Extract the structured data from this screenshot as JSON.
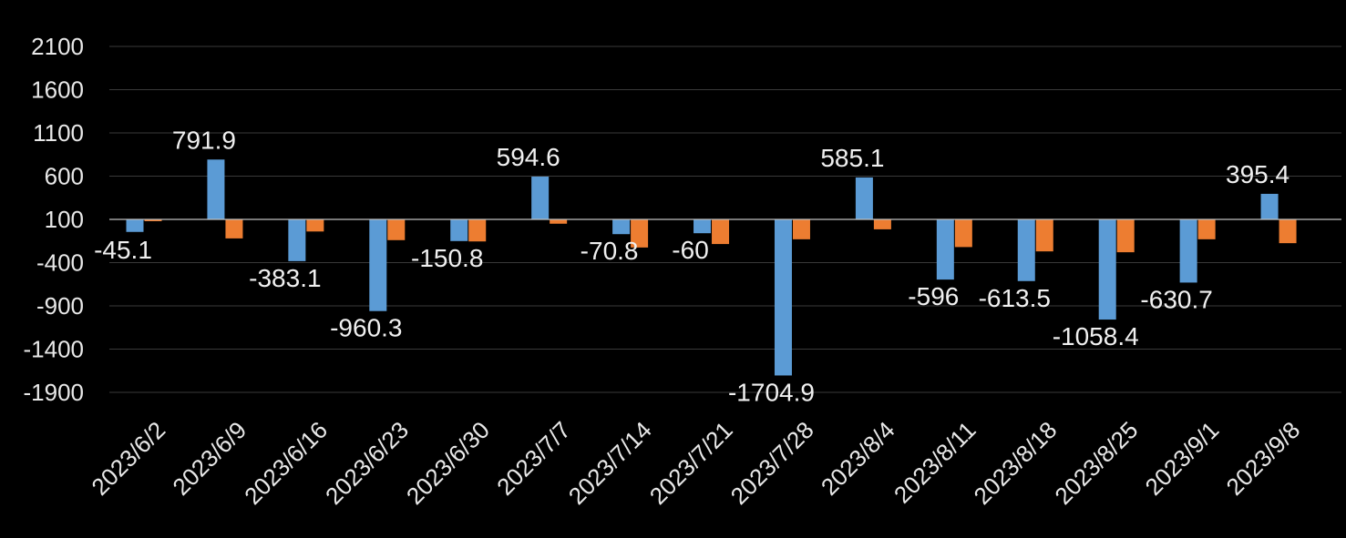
{
  "chart_data": {
    "type": "bar",
    "categories": [
      "2023/6/2",
      "2023/6/9",
      "2023/6/16",
      "2023/6/23",
      "2023/6/30",
      "2023/7/7",
      "2023/7/14",
      "2023/7/21",
      "2023/7/28",
      "2023/8/4",
      "2023/8/11",
      "2023/8/18",
      "2023/8/25",
      "2023/9/1",
      "2023/9/8"
    ],
    "series": [
      {
        "color": "#5b9bd5",
        "values": [
          -45.1,
          791.9,
          -383.1,
          -960.3,
          -150.8,
          594.6,
          -70.8,
          -60,
          -1704.9,
          585.1,
          -596,
          -613.5,
          -1058.4,
          -630.7,
          395.4
        ],
        "labels": [
          "-45.1",
          "791.9",
          "-383.1",
          "-960.3",
          "-150.8",
          "594.6",
          "-70.8",
          "-60",
          "-1704.9",
          "585.1",
          "-596",
          "-613.5",
          "-1058.4",
          "-630.7",
          "395.4"
        ]
      },
      {
        "color": "#ed7d31",
        "values": [
          100,
          -120,
          -40,
          -140,
          -155,
          50,
          -225,
          -185,
          -130,
          -15,
          -220,
          -270,
          -280,
          -130,
          -175
        ]
      }
    ],
    "yticks": [
      "2100",
      "1600",
      "1100",
      "600",
      "100",
      "-400",
      "-900",
      "-1400",
      "-1900"
    ],
    "ylim": [
      -2150,
      2100
    ],
    "title": "",
    "xlabel": "",
    "ylabel": "",
    "grid": true
  }
}
